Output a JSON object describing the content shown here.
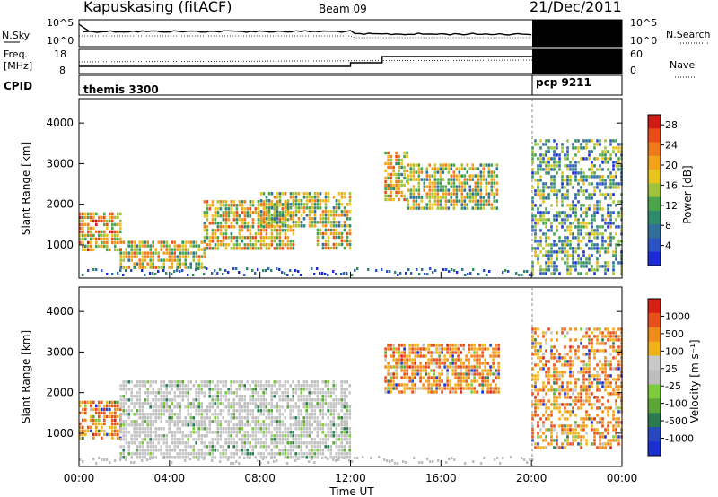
{
  "header": {
    "station": "Kapuskasing (fitACF)",
    "beam": "Beam 09",
    "date": "21/Dec/2011"
  },
  "panel_labels": {
    "nsky": "N.Sky",
    "nsearch": "N.Search",
    "freq_line1": "Freq.",
    "freq_line2": "[MHz]",
    "nave": "Nave",
    "cpid": "CPID"
  },
  "cpid_segments": [
    {
      "name": "themis 3300",
      "start_hour": 0,
      "end_hour": 20
    },
    {
      "name": "pcp 9211",
      "start_hour": 20,
      "end_hour": 24
    }
  ],
  "noise_axis": {
    "left_ticks": [
      "10^5",
      "10^0"
    ],
    "right_ticks": [
      "10^5",
      "10^0"
    ]
  },
  "freq_axis": {
    "left_ticks": [
      "18",
      "8"
    ],
    "right_ticks": [
      "60",
      "0"
    ]
  },
  "chart_data": [
    {
      "type": "heatmap",
      "quantity": "Power [dB]",
      "ylabel": "Slant Range [km]",
      "ylim": [
        180,
        4600
      ],
      "yticks": [
        1000,
        2000,
        3000,
        4000
      ],
      "xlim": [
        0,
        24
      ],
      "colorbar": {
        "label": "Power [dB]",
        "ticks": [
          4,
          8,
          12,
          16,
          20,
          24,
          28
        ],
        "range": [
          0,
          30
        ],
        "colors": [
          "#1c2bd6",
          "#2a52c4",
          "#2f6e9a",
          "#2e8a6a",
          "#4aa54a",
          "#9ec23a",
          "#e8c41e",
          "#f2a21a",
          "#f07a1a",
          "#e84d16",
          "#d01a14"
        ]
      },
      "regions": [
        {
          "x": [
            0.0,
            1.8
          ],
          "y": [
            900,
            1800
          ],
          "level": 0.65
        },
        {
          "x": [
            1.8,
            5.5
          ],
          "y": [
            400,
            1100
          ],
          "level": 0.55
        },
        {
          "x": [
            5.5,
            9.5
          ],
          "y": [
            900,
            2100
          ],
          "level": 0.6
        },
        {
          "x": [
            8.0,
            12.0
          ],
          "y": [
            1500,
            2300
          ],
          "level": 0.5
        },
        {
          "x": [
            10.5,
            12.0
          ],
          "y": [
            900,
            1400
          ],
          "level": 0.55
        },
        {
          "x": [
            13.5,
            14.5
          ],
          "y": [
            2100,
            3300
          ],
          "level": 0.55
        },
        {
          "x": [
            14.5,
            18.5
          ],
          "y": [
            1900,
            3000
          ],
          "level": 0.5
        },
        {
          "x": [
            20.0,
            24.0
          ],
          "y": [
            300,
            3600
          ],
          "level": 0.35
        }
      ]
    },
    {
      "type": "heatmap",
      "quantity": "Velocity [m s-1]",
      "ylabel": "Slant Range [km]",
      "ylim": [
        180,
        4600
      ],
      "yticks": [
        1000,
        2000,
        3000,
        4000
      ],
      "xlim": [
        0,
        24
      ],
      "xticks": [
        "00:00",
        "04:00",
        "08:00",
        "12:00",
        "16:00",
        "20:00",
        "00:00"
      ],
      "xlabel": "Time UT",
      "colorbar": {
        "label": "Velocity [m s⁻¹]",
        "ticks": [
          "1000",
          "500",
          "100",
          "25",
          "-25",
          "-100",
          "-500",
          "-1000"
        ],
        "range": [
          -1200,
          1200
        ],
        "colors": [
          "#1a2fd0",
          "#2848c0",
          "#2a7a50",
          "#5aa636",
          "#7ccc3a",
          "#bdbdbd",
          "#c8c8c8",
          "#f0b21a",
          "#f08a1a",
          "#e8501a",
          "#d82014"
        ]
      },
      "regions": [
        {
          "x": [
            0.0,
            1.8
          ],
          "y": [
            900,
            1800
          ],
          "vel": "away"
        },
        {
          "x": [
            1.8,
            12.0
          ],
          "y": [
            400,
            2300
          ],
          "vel": "ground"
        },
        {
          "x": [
            13.5,
            18.5
          ],
          "y": [
            2000,
            3200
          ],
          "vel": "away"
        },
        {
          "x": [
            20.0,
            24.0
          ],
          "y": [
            600,
            3600
          ],
          "vel": "away"
        }
      ]
    }
  ]
}
